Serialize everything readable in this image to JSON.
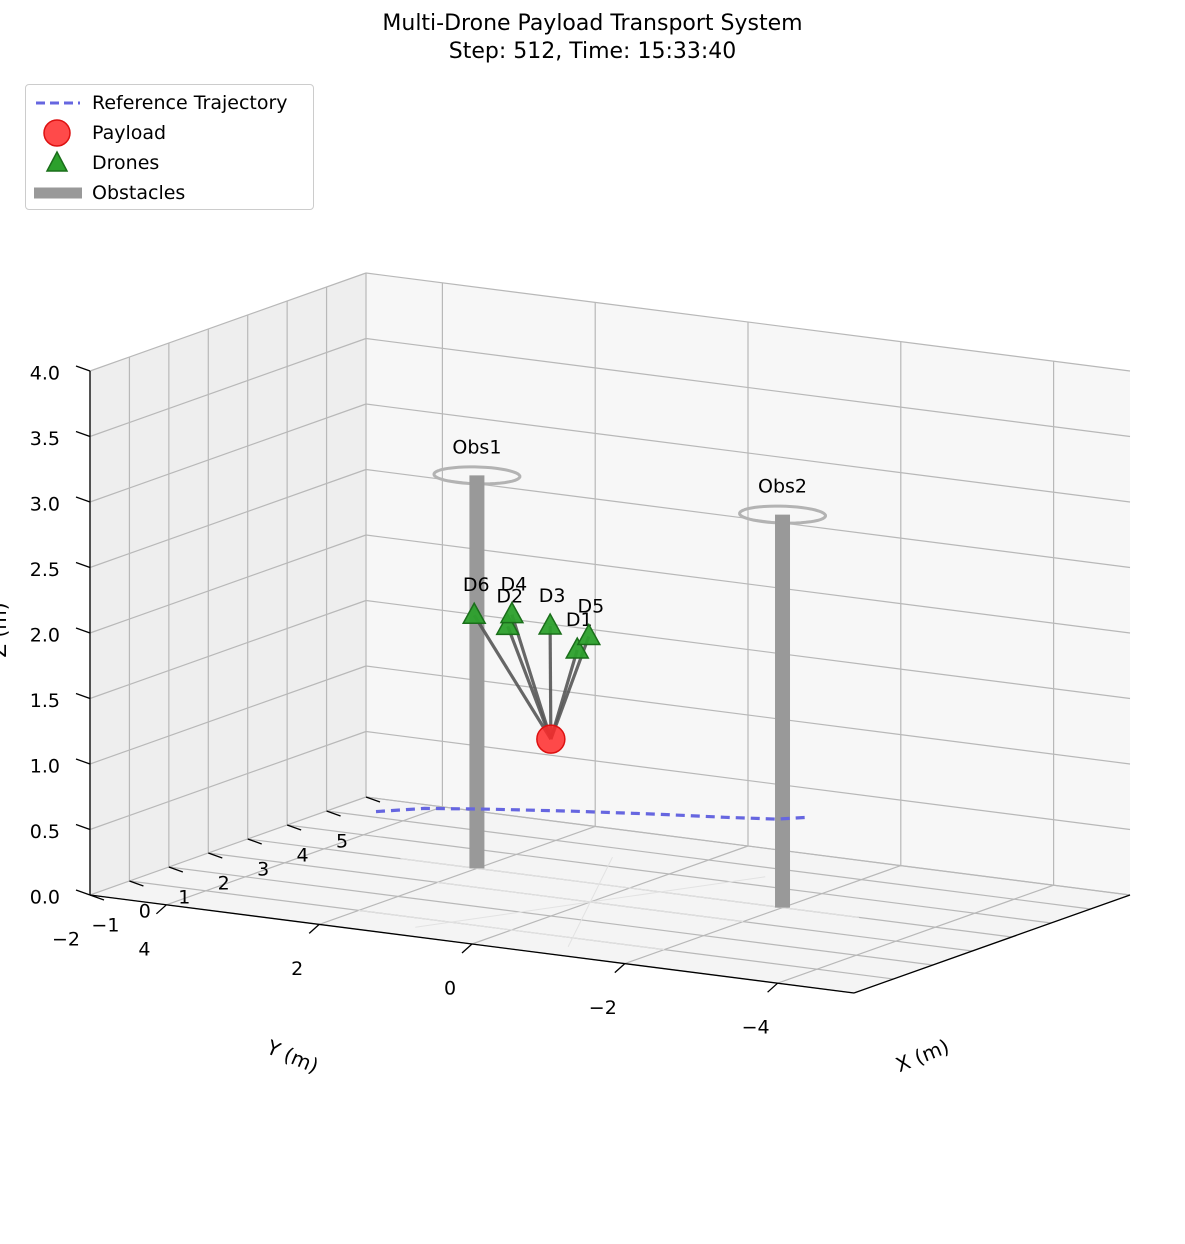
{
  "chart_data": {
    "type": "scatter",
    "title": "Multi-Drone Payload Transport System",
    "subtitle": "Step: 512, Time: 15:33:40",
    "xlabel": "X (m)",
    "ylabel": "Y (m)",
    "zlabel": "Z (m)",
    "xlim": [
      -5,
      5
    ],
    "ylim": [
      -2,
      5
    ],
    "zlim": [
      0,
      4
    ],
    "x_ticks": [
      "4",
      "2",
      "0",
      "−2",
      "−4"
    ],
    "y_ticks": [
      "−2",
      "−1",
      "0",
      "1",
      "2",
      "3",
      "4",
      "5"
    ],
    "z_ticks": [
      "0.0",
      "0.5",
      "1.0",
      "1.5",
      "2.0",
      "2.5",
      "3.0",
      "3.5",
      "4.0"
    ],
    "grid": true,
    "legend_position": "top-left",
    "legend": [
      "Reference Trajectory",
      "Payload",
      "Drones",
      "Obstacles"
    ],
    "colors": {
      "trajectory": "#6666e0",
      "payload": "#ff2a2a",
      "drone_fill": "#2ca02c",
      "drone_edge": "#1a6e1a",
      "obstacle": "#999999",
      "cable": "#555555"
    },
    "reference_trajectory": {
      "x": [
        1.67,
        1.29,
        0.63,
        -0.21,
        -1.08,
        -1.84,
        -2.38,
        -2.63
      ],
      "y": [
        -1.2,
        -0.7,
        -0.3,
        0.15,
        0.55,
        0.85,
        1.1,
        1.4
      ],
      "z": [
        0.8,
        0.8,
        0.8,
        0.8,
        0.8,
        0.8,
        0.8,
        0.8
      ]
    },
    "payload": {
      "x": 0.0,
      "y": 0.0,
      "z": 1.35
    },
    "drones": [
      {
        "label": "D1",
        "x": -0.5,
        "y": -0.3,
        "z": 2.1
      },
      {
        "label": "D2",
        "x": 0.1,
        "y": -0.9,
        "z": 2.3
      },
      {
        "label": "D3",
        "x": -0.3,
        "y": -0.6,
        "z": 2.3
      },
      {
        "label": "D4",
        "x": 0.2,
        "y": -0.6,
        "z": 2.35
      },
      {
        "label": "D5",
        "x": -0.6,
        "y": -0.2,
        "z": 2.2
      },
      {
        "label": "D6",
        "x": 0.9,
        "y": -0.2,
        "z": 2.25
      }
    ],
    "obstacles": [
      {
        "label": "Obs1",
        "x": 2.0,
        "y": 2.0,
        "radius": 0.5,
        "height": 3.0
      },
      {
        "label": "Obs2",
        "x": -2.0,
        "y": 2.0,
        "radius": 0.5,
        "height": 3.0
      }
    ]
  }
}
